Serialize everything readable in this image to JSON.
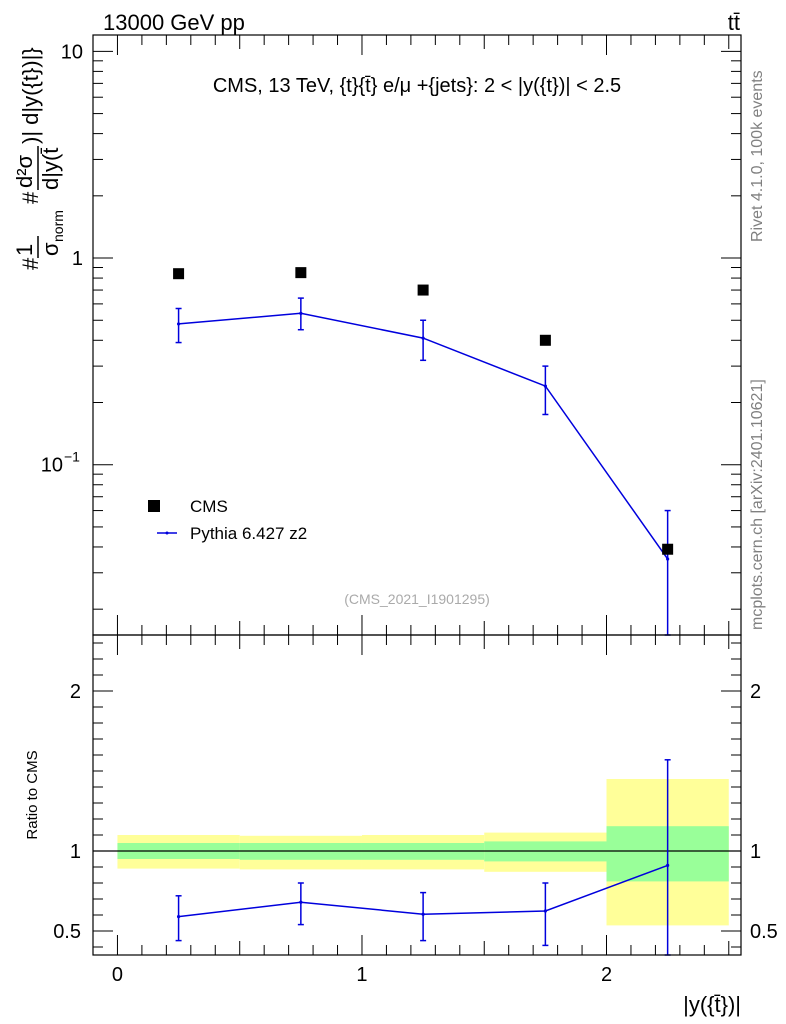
{
  "header": {
    "energy_label": "13000 GeV pp",
    "process_label": "tt̄"
  },
  "side_labels": {
    "rivet": "Rivet 4.1.0,  100k events",
    "mcplots": "mcplots.cern.ch [arXiv:2401.10621]"
  },
  "chart_data": [
    {
      "type": "line",
      "panel": "main",
      "title": "CMS, 13 TeV, {t}{t̄} e/μ +{jets}: 2 < |y({t})| < 2.5",
      "ylabel_parts": [
        "#",
        "1",
        "σ",
        "norm",
        "#",
        "d²σ",
        "d|y(t̄",
        ")| d|y({t})|}"
      ],
      "yscale": "log",
      "ylim": [
        0.015,
        12
      ],
      "xlim": [
        -0.1,
        2.55
      ],
      "yticks": [
        {
          "value": 10,
          "label": "10"
        },
        {
          "value": 1,
          "label": "1"
        },
        {
          "value": 0.1,
          "label": "10",
          "sup": "−1"
        }
      ],
      "watermark": "(CMS_2021_I1901295)",
      "legend": [
        {
          "name": "CMS",
          "marker": "square"
        },
        {
          "name": "Pythia 6.427 z2",
          "marker": "line"
        }
      ],
      "series": [
        {
          "name": "CMS",
          "x": [
            0.25,
            0.75,
            1.25,
            1.75,
            2.25
          ],
          "y": [
            0.84,
            0.85,
            0.7,
            0.4,
            0.039
          ]
        },
        {
          "name": "Pythia 6.427 z2",
          "x": [
            0.25,
            0.75,
            1.25,
            1.75,
            2.25
          ],
          "y": [
            0.48,
            0.54,
            0.41,
            0.24,
            0.035
          ],
          "err_lo": [
            0.39,
            0.45,
            0.32,
            0.175,
            0.012
          ],
          "err_hi": [
            0.57,
            0.64,
            0.5,
            0.3,
            0.06
          ]
        }
      ]
    },
    {
      "type": "line",
      "panel": "ratio",
      "ylabel": "Ratio to CMS",
      "xlabel": "|y({t̄})|",
      "ylim": [
        0.35,
        2.35
      ],
      "xlim": [
        -0.1,
        2.55
      ],
      "yticks": [
        0.5,
        1,
        2
      ],
      "xticks": [
        0,
        1,
        2
      ],
      "reference_line": 1,
      "bands": [
        {
          "x0": 0.0,
          "x1": 0.5,
          "yellow": [
            0.89,
            1.1
          ],
          "green": [
            0.95,
            1.05
          ]
        },
        {
          "x0": 0.5,
          "x1": 1.0,
          "yellow": [
            0.885,
            1.095
          ],
          "green": [
            0.945,
            1.05
          ]
        },
        {
          "x0": 1.0,
          "x1": 1.5,
          "yellow": [
            0.885,
            1.1
          ],
          "green": [
            0.945,
            1.05
          ]
        },
        {
          "x0": 1.5,
          "x1": 2.0,
          "yellow": [
            0.87,
            1.115
          ],
          "green": [
            0.935,
            1.06
          ]
        },
        {
          "x0": 2.0,
          "x1": 2.5,
          "yellow": [
            0.535,
            1.45
          ],
          "green": [
            0.81,
            1.155
          ]
        }
      ],
      "series": [
        {
          "name": "Pythia 6.427 z2",
          "x": [
            0.25,
            0.75,
            1.25,
            1.75,
            2.25
          ],
          "y": [
            0.59,
            0.68,
            0.605,
            0.625,
            0.91
          ],
          "err_lo": [
            0.44,
            0.54,
            0.44,
            0.41,
            0.35
          ],
          "err_hi": [
            0.72,
            0.8,
            0.74,
            0.8,
            1.57
          ]
        }
      ]
    }
  ],
  "colors": {
    "data": "#000000",
    "mc": "#0000dd",
    "green": "#99ff99",
    "yellow": "#ffff99",
    "grey": "#808080"
  }
}
